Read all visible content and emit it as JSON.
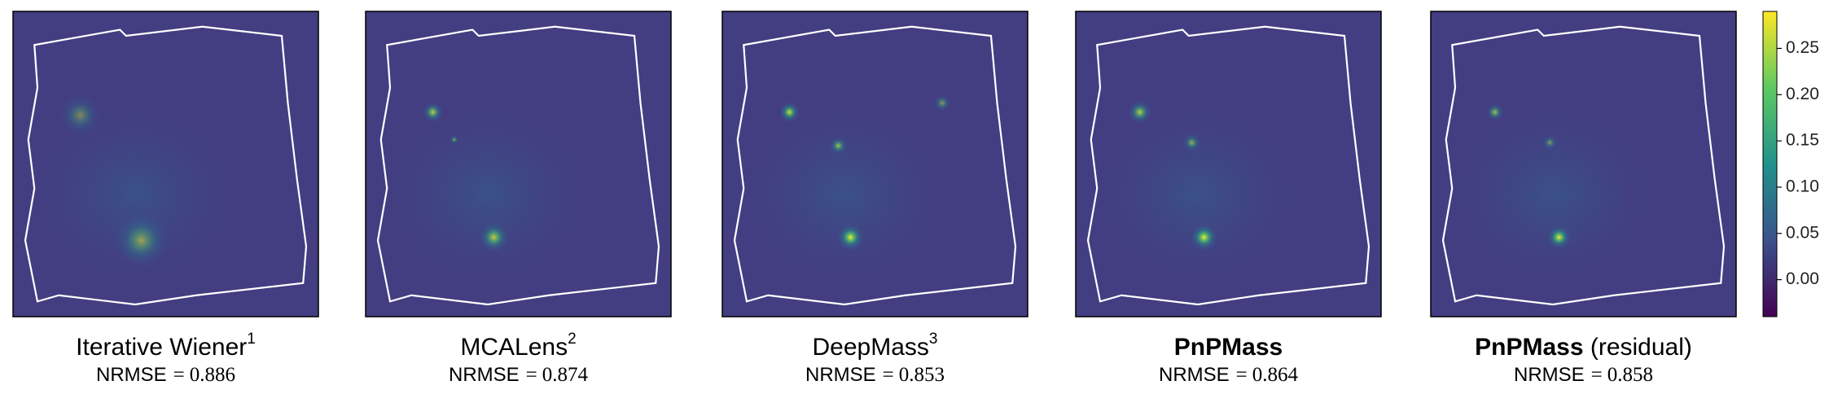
{
  "panels": [
    {
      "title": "Iterative Wiener",
      "superscript": "1",
      "bold": false,
      "metric": {
        "name": "NRMSE",
        "sign": "=",
        "value": "0.886"
      }
    },
    {
      "title": "MCALens",
      "superscript": "2",
      "bold": false,
      "metric": {
        "name": "NRMSE",
        "sign": "=",
        "value": "0.874"
      }
    },
    {
      "title": "DeepMass",
      "superscript": "3",
      "bold": false,
      "metric": {
        "name": "NRMSE",
        "sign": "=",
        "value": "0.853"
      }
    },
    {
      "title": "PnPMass",
      "bold": true,
      "metric": {
        "name": "NRMSE",
        "sign": "=",
        "value": "0.864"
      }
    },
    {
      "title": "PnPMass",
      "suffix": "(residual)",
      "bold": true,
      "metric": {
        "name": "NRMSE",
        "sign": "=",
        "value": "0.858"
      }
    }
  ],
  "colorbar": {
    "lim": [
      -0.04,
      0.29
    ],
    "ticks": [
      {
        "value": 0,
        "label": "0.00"
      },
      {
        "value": 0.05,
        "label": "0.05"
      },
      {
        "value": 0.1,
        "label": "0.10"
      },
      {
        "value": 0.15,
        "label": "0.15"
      },
      {
        "value": 0.2,
        "label": "0.20"
      },
      {
        "value": 0.25,
        "label": "0.25"
      }
    ]
  }
}
